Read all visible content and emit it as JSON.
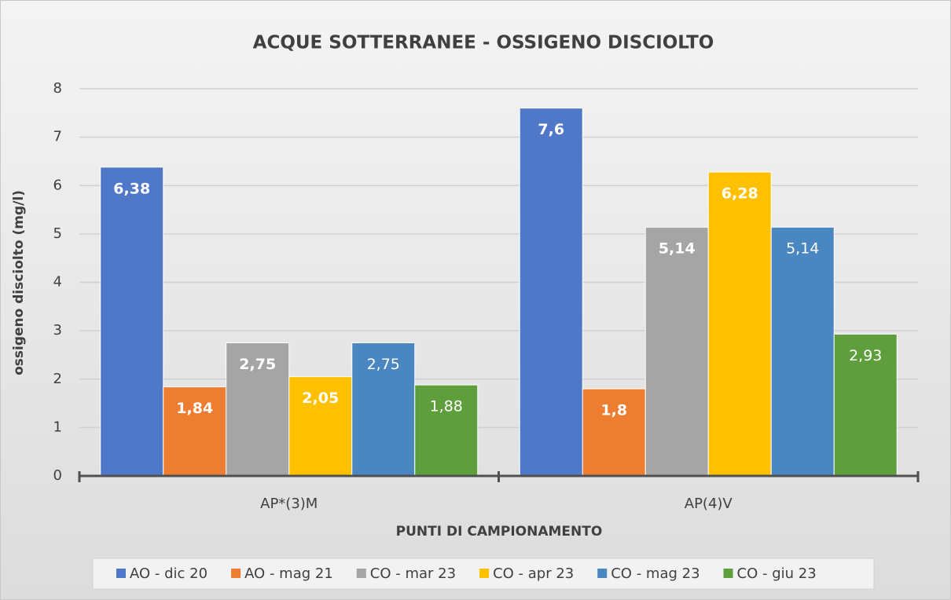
{
  "chart_data": {
    "type": "bar",
    "title": "ACQUE SOTTERRANEE - OSSIGENO DISCIOLTO",
    "x_label": "PUNTI DI CAMPIONAMENTO",
    "y_label": "ossigeno disciolto (mg/l)",
    "categories": [
      "AP*(3)M",
      "AP(4)V"
    ],
    "series": [
      {
        "name": "AO - dic 20",
        "color": "#4f78c8",
        "values": [
          6.38,
          7.6
        ],
        "value_labels": [
          "6,38",
          "7,6"
        ]
      },
      {
        "name": "AO - mag 21",
        "color": "#ed7d31",
        "values": [
          1.84,
          1.8
        ],
        "value_labels": [
          "1,84",
          "1,8"
        ]
      },
      {
        "name": "CO - mar 23",
        "color": "#a5a5a5",
        "values": [
          2.75,
          5.14
        ],
        "value_labels": [
          "2,75",
          "5,14"
        ]
      },
      {
        "name": "CO - apr 23",
        "color": "#ffc000",
        "values": [
          2.05,
          6.28
        ],
        "value_labels": [
          "2,05",
          "6,28"
        ]
      },
      {
        "name": "CO - mag 23",
        "color": "#4a86c0",
        "values": [
          2.75,
          5.14
        ],
        "value_labels": [
          "2,75",
          "5,14"
        ]
      },
      {
        "name": "CO - giu 23",
        "color": "#5f9e3c",
        "values": [
          1.88,
          2.93
        ],
        "value_labels": [
          "1,88",
          "2,93"
        ]
      }
    ],
    "ylim": [
      0,
      8
    ],
    "yticks": [
      0,
      1,
      2,
      3,
      4,
      5,
      6,
      7,
      8
    ],
    "grid": true,
    "legend": "bottom"
  }
}
